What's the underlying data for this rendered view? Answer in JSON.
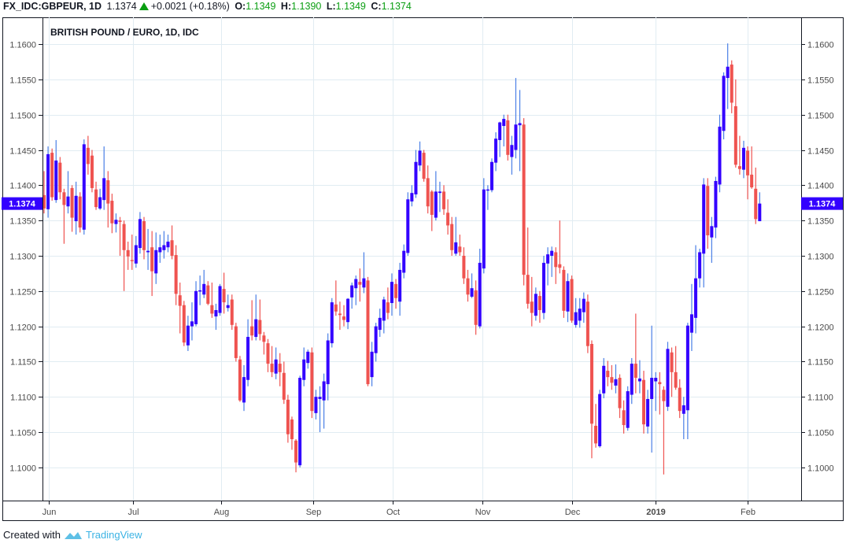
{
  "header": {
    "symbol": "FX_IDC:GBPEUR, 1D",
    "last": "1.1374",
    "change": "+0.0021 (+0.18%)",
    "o_label": "O:",
    "o_value": "1.1349",
    "h_label": "H:",
    "h_value": "1.1390",
    "l_label": "L:",
    "l_value": "1.1349",
    "c_label": "C:",
    "c_value": "1.1374",
    "direction_icon": "triangle-up-icon"
  },
  "footer": {
    "created_with": "Created with",
    "brand": "TradingView"
  },
  "colors": {
    "up_body": "#3300ff",
    "up_wick": "#4a7fe6",
    "down": "#ef5350",
    "grid": "#e1ecf2",
    "price_label_bg": "#3300ff"
  },
  "chart_data": {
    "type": "candlestick",
    "title": "BRITISH POUND / EURO, 1D, IDC",
    "ylim": [
      1.0953,
      1.1638
    ],
    "y_ticks": [
      "1.1000",
      "1.1050",
      "1.1100",
      "1.1150",
      "1.1200",
      "1.1250",
      "1.1300",
      "1.1350",
      "1.1400",
      "1.1450",
      "1.1500",
      "1.1550",
      "1.1600"
    ],
    "x_ticks": [
      {
        "label": "Jun",
        "index": 1.2,
        "bold": false
      },
      {
        "label": "Jul",
        "index": 22.2,
        "bold": false
      },
      {
        "label": "Aug",
        "index": 44.3,
        "bold": false
      },
      {
        "label": "Sep",
        "index": 67.3,
        "bold": false
      },
      {
        "label": "Oct",
        "index": 87.2,
        "bold": false
      },
      {
        "label": "Nov",
        "index": 109.6,
        "bold": false
      },
      {
        "label": "Dec",
        "index": 132.1,
        "bold": false
      },
      {
        "label": "2019",
        "index": 152.9,
        "bold": true
      },
      {
        "label": "Feb",
        "index": 176,
        "bold": false
      }
    ],
    "last_price": 1.1374,
    "last_price_label": "1.1374",
    "grid": true,
    "ohlc": [
      [
        1.1386,
        1.142,
        1.136,
        1.1367
      ],
      [
        1.1366,
        1.1455,
        1.1354,
        1.1444
      ],
      [
        1.1446,
        1.1452,
        1.1378,
        1.1383
      ],
      [
        1.1379,
        1.1464,
        1.1375,
        1.1435
      ],
      [
        1.1432,
        1.144,
        1.138,
        1.139
      ],
      [
        1.139,
        1.1395,
        1.1317,
        1.1372
      ],
      [
        1.137,
        1.142,
        1.136,
        1.1384
      ],
      [
        1.1396,
        1.14,
        1.1334,
        1.1354
      ],
      [
        1.1349,
        1.1405,
        1.133,
        1.1385
      ],
      [
        1.1384,
        1.139,
        1.1333,
        1.134
      ],
      [
        1.1337,
        1.1465,
        1.133,
        1.1458
      ],
      [
        1.1453,
        1.147,
        1.1415,
        1.143
      ],
      [
        1.1442,
        1.145,
        1.139,
        1.1396
      ],
      [
        1.1394,
        1.1405,
        1.1365,
        1.1369
      ],
      [
        1.1367,
        1.1395,
        1.1365,
        1.1383
      ],
      [
        1.1379,
        1.1455,
        1.1365,
        1.141
      ],
      [
        1.1407,
        1.142,
        1.134,
        1.1374
      ],
      [
        1.1378,
        1.1388,
        1.1332,
        1.1346
      ],
      [
        1.1345,
        1.136,
        1.1333,
        1.1351
      ],
      [
        1.135,
        1.1355,
        1.13,
        1.1348
      ],
      [
        1.1345,
        1.135,
        1.125,
        1.1308
      ],
      [
        1.1308,
        1.132,
        1.128,
        1.1299
      ],
      [
        1.1294,
        1.133,
        1.128,
        1.1293
      ],
      [
        1.1289,
        1.1328,
        1.1283,
        1.1315
      ],
      [
        1.1311,
        1.1362,
        1.1303,
        1.1352
      ],
      [
        1.1349,
        1.1355,
        1.1295,
        1.1308
      ],
      [
        1.1305,
        1.1338,
        1.128,
        1.1307
      ],
      [
        1.1312,
        1.1335,
        1.1243,
        1.1278
      ],
      [
        1.1275,
        1.1333,
        1.126,
        1.1308
      ],
      [
        1.1305,
        1.133,
        1.129,
        1.1312
      ],
      [
        1.1308,
        1.1335,
        1.1296,
        1.1315
      ],
      [
        1.1312,
        1.133,
        1.1305,
        1.132
      ],
      [
        1.1322,
        1.1343,
        1.1295,
        1.13
      ],
      [
        1.1301,
        1.1315,
        1.123,
        1.1246
      ],
      [
        1.1244,
        1.1262,
        1.119,
        1.1229
      ],
      [
        1.123,
        1.1236,
        1.1172,
        1.1177
      ],
      [
        1.1173,
        1.1215,
        1.1165,
        1.1201
      ],
      [
        1.12,
        1.1234,
        1.118,
        1.1207
      ],
      [
        1.1203,
        1.1264,
        1.12,
        1.125
      ],
      [
        1.125,
        1.1272,
        1.123,
        1.1251
      ],
      [
        1.1245,
        1.128,
        1.124,
        1.126
      ],
      [
        1.1258,
        1.1264,
        1.123,
        1.1232
      ],
      [
        1.123,
        1.1262,
        1.1212,
        1.1218
      ],
      [
        1.1214,
        1.1232,
        1.1195,
        1.1223
      ],
      [
        1.1219,
        1.126,
        1.1215,
        1.1257
      ],
      [
        1.1253,
        1.1276,
        1.1218,
        1.1234
      ],
      [
        1.1226,
        1.1245,
        1.1221,
        1.123
      ],
      [
        1.1238,
        1.1245,
        1.1195,
        1.1202
      ],
      [
        1.12,
        1.1205,
        1.115,
        1.1155
      ],
      [
        1.1153,
        1.1158,
        1.1093,
        1.1095
      ],
      [
        1.1092,
        1.1145,
        1.108,
        1.1128
      ],
      [
        1.1124,
        1.121,
        1.1115,
        1.1185
      ],
      [
        1.12,
        1.1237,
        1.118,
        1.1187
      ],
      [
        1.1185,
        1.1245,
        1.118,
        1.121
      ],
      [
        1.1209,
        1.1238,
        1.118,
        1.1189
      ],
      [
        1.1187,
        1.1192,
        1.116,
        1.1178
      ],
      [
        1.1176,
        1.1182,
        1.1135,
        1.1147
      ],
      [
        1.1147,
        1.1172,
        1.1128,
        1.1135
      ],
      [
        1.1133,
        1.117,
        1.1125,
        1.1153
      ],
      [
        1.1147,
        1.1162,
        1.1115,
        1.1135
      ],
      [
        1.1134,
        1.115,
        1.109,
        1.1096
      ],
      [
        1.1096,
        1.1103,
        1.1035,
        1.1047
      ],
      [
        1.1068,
        1.1072,
        1.1025,
        1.104
      ],
      [
        1.1038,
        1.104,
        1.0993,
        1.1007
      ],
      [
        1.1003,
        1.113,
        1.1,
        1.1127
      ],
      [
        1.1124,
        1.117,
        1.1115,
        1.1153
      ],
      [
        1.1148,
        1.1167,
        1.114,
        1.1164
      ],
      [
        1.1163,
        1.117,
        1.107,
        1.108
      ],
      [
        1.1077,
        1.111,
        1.1068,
        1.11
      ],
      [
        1.1097,
        1.1115,
        1.105,
        1.11
      ],
      [
        1.1095,
        1.1133,
        1.1055,
        1.1122
      ],
      [
        1.1118,
        1.119,
        1.1095,
        1.118
      ],
      [
        1.1176,
        1.124,
        1.117,
        1.1234
      ],
      [
        1.1231,
        1.1265,
        1.1215,
        1.1221
      ],
      [
        1.1218,
        1.1235,
        1.1195,
        1.1216
      ],
      [
        1.1214,
        1.123,
        1.12,
        1.1209
      ],
      [
        1.1206,
        1.124,
        1.1196,
        1.1239
      ],
      [
        1.1241,
        1.1262,
        1.1225,
        1.1258
      ],
      [
        1.1254,
        1.1272,
        1.123,
        1.1267
      ],
      [
        1.1263,
        1.1282,
        1.1235,
        1.1259
      ],
      [
        1.1255,
        1.1305,
        1.1247,
        1.1268
      ],
      [
        1.1265,
        1.127,
        1.1115,
        1.1118
      ],
      [
        1.1128,
        1.1178,
        1.1115,
        1.1164
      ],
      [
        1.1162,
        1.1205,
        1.115,
        1.12
      ],
      [
        1.1195,
        1.1225,
        1.1185,
        1.1212
      ],
      [
        1.1208,
        1.1242,
        1.119,
        1.1238
      ],
      [
        1.1234,
        1.1255,
        1.121,
        1.1219
      ],
      [
        1.1233,
        1.1275,
        1.1215,
        1.1263
      ],
      [
        1.126,
        1.1267,
        1.1225,
        1.124
      ],
      [
        1.1235,
        1.129,
        1.1215,
        1.128
      ],
      [
        1.1276,
        1.1316,
        1.1268,
        1.1307
      ],
      [
        1.1304,
        1.139,
        1.13,
        1.138
      ],
      [
        1.1377,
        1.14,
        1.137,
        1.1389
      ],
      [
        1.1387,
        1.145,
        1.1382,
        1.1433
      ],
      [
        1.1428,
        1.1462,
        1.142,
        1.1449
      ],
      [
        1.1446,
        1.145,
        1.1405,
        1.1409
      ],
      [
        1.141,
        1.1428,
        1.136,
        1.137
      ],
      [
        1.1391,
        1.1393,
        1.1335,
        1.1358
      ],
      [
        1.1354,
        1.142,
        1.135,
        1.1391
      ],
      [
        1.1389,
        1.1405,
        1.1362,
        1.1391
      ],
      [
        1.1391,
        1.14,
        1.1358,
        1.1366
      ],
      [
        1.1361,
        1.138,
        1.133,
        1.1343
      ],
      [
        1.1345,
        1.1355,
        1.13,
        1.1308
      ],
      [
        1.1303,
        1.1355,
        1.13,
        1.1319
      ],
      [
        1.1313,
        1.133,
        1.13,
        1.1305
      ],
      [
        1.13,
        1.1312,
        1.126,
        1.1268
      ],
      [
        1.1268,
        1.128,
        1.1235,
        1.1245
      ],
      [
        1.1242,
        1.1275,
        1.124,
        1.1254
      ],
      [
        1.1251,
        1.1265,
        1.1188,
        1.1202
      ],
      [
        1.12,
        1.131,
        1.1197,
        1.129
      ],
      [
        1.1282,
        1.141,
        1.1275,
        1.1394
      ],
      [
        1.1393,
        1.14,
        1.1365,
        1.1394
      ],
      [
        1.1393,
        1.1438,
        1.139,
        1.1433
      ],
      [
        1.1432,
        1.1475,
        1.142,
        1.1466
      ],
      [
        1.1464,
        1.149,
        1.144,
        1.1489
      ],
      [
        1.1484,
        1.15,
        1.1455,
        1.1494
      ],
      [
        1.1492,
        1.15,
        1.1435,
        1.1443
      ],
      [
        1.144,
        1.147,
        1.1415,
        1.1457
      ],
      [
        1.145,
        1.1552,
        1.1438,
        1.1486
      ],
      [
        1.1485,
        1.1535,
        1.142,
        1.1488
      ],
      [
        1.1486,
        1.1495,
        1.1258,
        1.1273
      ],
      [
        1.1273,
        1.134,
        1.1225,
        1.1232
      ],
      [
        1.1235,
        1.127,
        1.12,
        1.1219
      ],
      [
        1.1215,
        1.1255,
        1.1208,
        1.1246
      ],
      [
        1.1243,
        1.125,
        1.1205,
        1.1223
      ],
      [
        1.1219,
        1.13,
        1.121,
        1.129
      ],
      [
        1.1289,
        1.1312,
        1.1258,
        1.1302
      ],
      [
        1.13,
        1.1313,
        1.127,
        1.1307
      ],
      [
        1.1305,
        1.1312,
        1.126,
        1.1284
      ],
      [
        1.1288,
        1.135,
        1.1275,
        1.1283
      ],
      [
        1.128,
        1.1285,
        1.1212,
        1.1222
      ],
      [
        1.1221,
        1.1275,
        1.1206,
        1.1264
      ],
      [
        1.1267,
        1.1272,
        1.1205,
        1.1208
      ],
      [
        1.1202,
        1.124,
        1.1198,
        1.122
      ],
      [
        1.1208,
        1.124,
        1.1198,
        1.1225
      ],
      [
        1.122,
        1.1248,
        1.1205,
        1.1239
      ],
      [
        1.1235,
        1.1245,
        1.1162,
        1.1172
      ],
      [
        1.1175,
        1.118,
        1.1013,
        1.1062
      ],
      [
        1.1059,
        1.109,
        1.1028,
        1.1034
      ],
      [
        1.103,
        1.111,
        1.1028,
        1.1104
      ],
      [
        1.1105,
        1.1155,
        1.1098,
        1.1144
      ],
      [
        1.1137,
        1.1151,
        1.1115,
        1.1128
      ],
      [
        1.1128,
        1.1145,
        1.111,
        1.112
      ],
      [
        1.1116,
        1.1146,
        1.1105,
        1.1125
      ],
      [
        1.1127,
        1.1132,
        1.107,
        1.1084
      ],
      [
        1.1081,
        1.1095,
        1.1048,
        1.106
      ],
      [
        1.1056,
        1.1115,
        1.1052,
        1.1108
      ],
      [
        1.1103,
        1.1155,
        1.109,
        1.1147
      ],
      [
        1.1147,
        1.1218,
        1.1105,
        1.1127
      ],
      [
        1.1122,
        1.1152,
        1.1105,
        1.1126
      ],
      [
        1.1124,
        1.1137,
        1.1048,
        1.1061
      ],
      [
        1.1058,
        1.111,
        1.1048,
        1.1097
      ],
      [
        1.1097,
        1.1201,
        1.1021,
        1.1127
      ],
      [
        1.1122,
        1.1135,
        1.108,
        1.1127
      ],
      [
        1.1121,
        1.1135,
        1.1075,
        1.1118
      ],
      [
        1.111,
        1.1115,
        1.099,
        1.1094
      ],
      [
        1.1086,
        1.1178,
        1.108,
        1.1168
      ],
      [
        1.1163,
        1.117,
        1.11,
        1.1135
      ],
      [
        1.1135,
        1.1172,
        1.111,
        1.1113
      ],
      [
        1.1113,
        1.1125,
        1.107,
        1.108
      ],
      [
        1.1076,
        1.11,
        1.104,
        1.1088
      ],
      [
        1.1081,
        1.1205,
        1.104,
        1.1201
      ],
      [
        1.1191,
        1.126,
        1.1165,
        1.1217
      ],
      [
        1.1212,
        1.1315,
        1.119,
        1.1268
      ],
      [
        1.1268,
        1.131,
        1.1255,
        1.1305
      ],
      [
        1.1303,
        1.141,
        1.1255,
        1.1401
      ],
      [
        1.1399,
        1.141,
        1.131,
        1.1329
      ],
      [
        1.1326,
        1.1355,
        1.129,
        1.1342
      ],
      [
        1.134,
        1.1412,
        1.1325,
        1.1406
      ],
      [
        1.1401,
        1.15,
        1.139,
        1.1483
      ],
      [
        1.1477,
        1.156,
        1.1465,
        1.1555
      ],
      [
        1.1552,
        1.1601,
        1.1508,
        1.1568
      ],
      [
        1.1571,
        1.1577,
        1.1502,
        1.1517
      ],
      [
        1.1512,
        1.155,
        1.1425,
        1.1429
      ],
      [
        1.1427,
        1.147,
        1.1415,
        1.1423
      ],
      [
        1.1422,
        1.1463,
        1.141,
        1.1453
      ],
      [
        1.1449,
        1.1455,
        1.138,
        1.1414
      ],
      [
        1.1415,
        1.1455,
        1.1395,
        1.1397
      ],
      [
        1.1395,
        1.1425,
        1.1345,
        1.1352
      ],
      [
        1.1349,
        1.139,
        1.1349,
        1.1374
      ]
    ]
  }
}
